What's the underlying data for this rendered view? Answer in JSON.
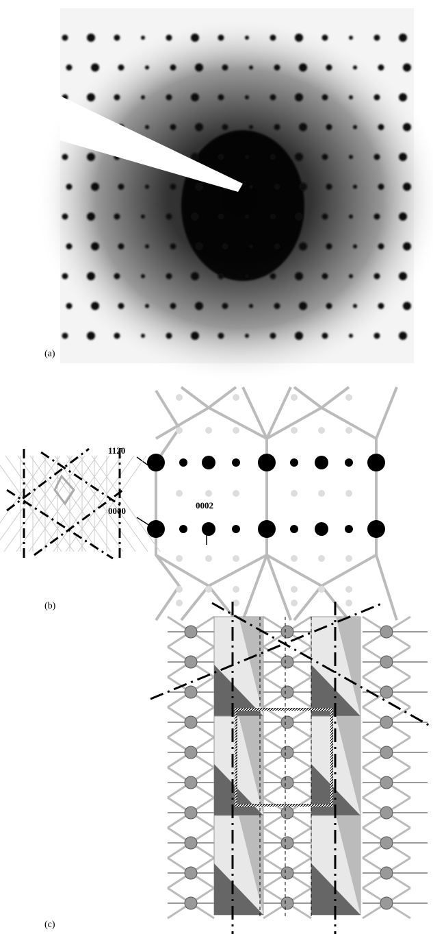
{
  "panels": [
    {
      "label": "(a)"
    },
    {
      "label": "(b)",
      "annotations": [
        "112̄0",
        "0000",
        "0002"
      ]
    },
    {
      "label": "(c)"
    }
  ]
}
